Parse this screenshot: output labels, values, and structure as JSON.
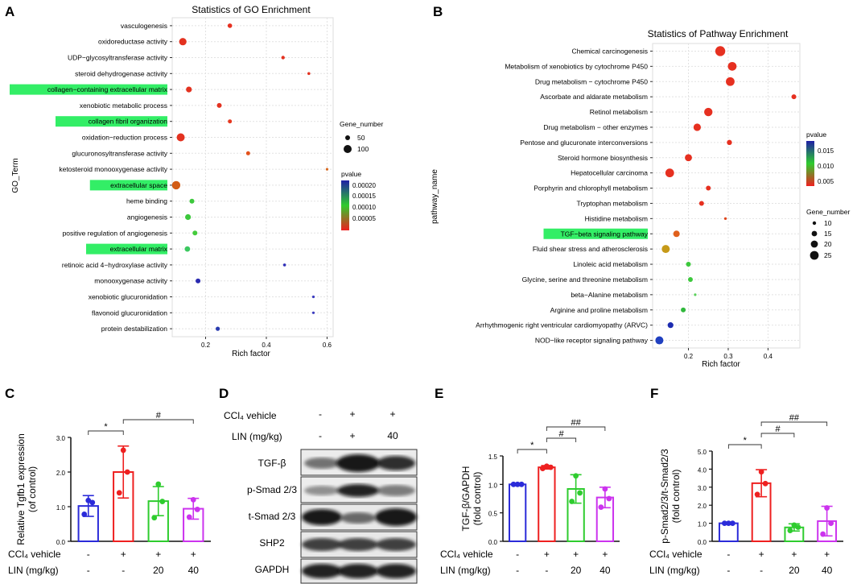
{
  "panels": {
    "A": "A",
    "B": "B",
    "C": "C",
    "D": "D",
    "E": "E",
    "F": "F"
  },
  "colors": {
    "blue": "#2b2bd9",
    "red": "#ee2020",
    "green": "#2ecc2e",
    "magenta": "#cc33ee",
    "highlight": "#33ee66"
  },
  "chart_data": [
    {
      "id": "go",
      "type": "scatter",
      "title": "Statistics of GO Enrichment",
      "xlabel": "Rich factor",
      "ylabel": "GO_Term",
      "xlim": [
        0.09,
        0.62
      ],
      "xticks": [
        {
          "v": 0.2,
          "label": "0.2"
        },
        {
          "v": 0.4,
          "label": "0.4"
        },
        {
          "v": 0.6,
          "label": "0.6"
        }
      ],
      "terms": [
        {
          "name": "vasculogenesis",
          "x": 0.28,
          "r": 2.8,
          "color": "#e63020",
          "hl": false
        },
        {
          "name": "oxidoreductase activity",
          "x": 0.125,
          "r": 4.6,
          "color": "#e33220",
          "hl": false
        },
        {
          "name": "UDP−glycosyltransferase activity",
          "x": 0.455,
          "r": 2.2,
          "color": "#e33220",
          "hl": false
        },
        {
          "name": "steroid dehydrogenase activity",
          "x": 0.54,
          "r": 1.8,
          "color": "#e33220",
          "hl": false
        },
        {
          "name": "collagen−containing extracellular matrix",
          "x": 0.145,
          "r": 3.6,
          "color": "#e33220",
          "hl": true
        },
        {
          "name": "xenobiotic metabolic process",
          "x": 0.245,
          "r": 3.0,
          "color": "#e33220",
          "hl": false
        },
        {
          "name": "collagen fibril organization",
          "x": 0.28,
          "r": 2.5,
          "color": "#e63820",
          "hl": true
        },
        {
          "name": "oxidation−reduction process",
          "x": 0.118,
          "r": 5.0,
          "color": "#e33220",
          "hl": false
        },
        {
          "name": "glucuronosyltransferase activity",
          "x": 0.34,
          "r": 2.5,
          "color": "#e3521c",
          "hl": false
        },
        {
          "name": "ketosteroid monooxygenase activity",
          "x": 0.6,
          "r": 1.6,
          "color": "#d86820",
          "hl": false
        },
        {
          "name": "extracellular space",
          "x": 0.103,
          "r": 5.2,
          "color": "#d25b14",
          "hl": true
        },
        {
          "name": "heme binding",
          "x": 0.155,
          "r": 3.0,
          "color": "#3cc83c",
          "hl": false
        },
        {
          "name": "angiogenesis",
          "x": 0.142,
          "r": 3.6,
          "color": "#3cc83c",
          "hl": false
        },
        {
          "name": "positive regulation of angiogenesis",
          "x": 0.165,
          "r": 3.0,
          "color": "#44cc3c",
          "hl": false
        },
        {
          "name": "extracellular matrix",
          "x": 0.14,
          "r": 3.4,
          "color": "#3cc860",
          "hl": true
        },
        {
          "name": "retinoic acid 4−hydroxylase activity",
          "x": 0.46,
          "r": 1.8,
          "color": "#3030b8",
          "hl": false
        },
        {
          "name": "monooxygenase activity",
          "x": 0.175,
          "r": 3.0,
          "color": "#2a2ab0",
          "hl": false
        },
        {
          "name": "xenobiotic glucuronidation",
          "x": 0.555,
          "r": 1.6,
          "color": "#3c3cc0",
          "hl": false
        },
        {
          "name": "flavonoid glucuronidation",
          "x": 0.555,
          "r": 1.6,
          "color": "#3c3cc0",
          "hl": false
        },
        {
          "name": "protein destabilization",
          "x": 0.24,
          "r": 2.6,
          "color": "#2a3cb0",
          "hl": false
        }
      ],
      "size_legend": {
        "title": "Gene_number",
        "entries": [
          {
            "label": "50",
            "r": 3
          },
          {
            "label": "100",
            "r": 5
          }
        ]
      },
      "color_legend": {
        "title": "pvalue",
        "ticks": [
          "0.00020",
          "0.00015",
          "0.00010",
          "0.00005"
        ]
      }
    },
    {
      "id": "kegg",
      "type": "scatter",
      "title": "Statistics of Pathway Enrichment",
      "xlabel": "Rich factor",
      "ylabel": "pathway_name",
      "xlim": [
        0.11,
        0.48
      ],
      "xticks": [
        {
          "v": 0.2,
          "label": "0.2"
        },
        {
          "v": 0.3,
          "label": "0.3"
        },
        {
          "v": 0.4,
          "label": "0.4"
        }
      ],
      "terms": [
        {
          "name": "Chemical carcinogenesis",
          "x": 0.28,
          "r": 6.2,
          "color": "#e63020",
          "hl": false
        },
        {
          "name": "Metabolism of xenobiotics by cytochrome P450",
          "x": 0.31,
          "r": 5.4,
          "color": "#e63020",
          "hl": false
        },
        {
          "name": "Drug metabolism − cytochrome P450",
          "x": 0.305,
          "r": 5.4,
          "color": "#e63020",
          "hl": false
        },
        {
          "name": "Ascorbate and aldarate metabolism",
          "x": 0.465,
          "r": 3.0,
          "color": "#e63020",
          "hl": false
        },
        {
          "name": "Retinol metabolism",
          "x": 0.25,
          "r": 5.2,
          "color": "#e63020",
          "hl": false
        },
        {
          "name": "Drug metabolism − other enzymes",
          "x": 0.222,
          "r": 4.6,
          "color": "#e63020",
          "hl": false
        },
        {
          "name": "Pentose and glucuronate interconversions",
          "x": 0.303,
          "r": 3.2,
          "color": "#e63020",
          "hl": false
        },
        {
          "name": "Steroid hormone biosynthesis",
          "x": 0.2,
          "r": 4.4,
          "color": "#e63020",
          "hl": false
        },
        {
          "name": "Hepatocellular carcinoma",
          "x": 0.153,
          "r": 5.4,
          "color": "#e63020",
          "hl": false
        },
        {
          "name": "Porphyrin and chlorophyll metabolism",
          "x": 0.25,
          "r": 3.0,
          "color": "#e63020",
          "hl": false
        },
        {
          "name": "Tryptophan metabolism",
          "x": 0.233,
          "r": 3.0,
          "color": "#e63020",
          "hl": false
        },
        {
          "name": "Histidine metabolism",
          "x": 0.293,
          "r": 1.6,
          "color": "#e0461c",
          "hl": false
        },
        {
          "name": "TGF−beta signaling pathway",
          "x": 0.17,
          "r": 4.0,
          "color": "#e0601c",
          "hl": true
        },
        {
          "name": "Fluid shear stress and atherosclerosis",
          "x": 0.143,
          "r": 5.0,
          "color": "#c69a18",
          "hl": false
        },
        {
          "name": "Linoleic acid metabolism",
          "x": 0.2,
          "r": 3.0,
          "color": "#3cc83c",
          "hl": false
        },
        {
          "name": "Glycine, serine and threonine metabolism",
          "x": 0.205,
          "r": 3.0,
          "color": "#3cc83c",
          "hl": false
        },
        {
          "name": "beta−Alanine metabolism",
          "x": 0.217,
          "r": 1.6,
          "color": "#5ad05a",
          "hl": false
        },
        {
          "name": "Arginine and proline metabolism",
          "x": 0.187,
          "r": 3.0,
          "color": "#30b83c",
          "hl": false
        },
        {
          "name": "Arrhythmogenic right ventricular cardiomyopathy (ARVC)",
          "x": 0.155,
          "r": 3.6,
          "color": "#1c2cb0",
          "hl": false
        },
        {
          "name": "NOD−like receptor signaling pathway",
          "x": 0.127,
          "r": 5.0,
          "color": "#2040c0",
          "hl": false
        }
      ],
      "color_legend": {
        "title": "pvalue",
        "ticks": [
          "0.015",
          "0.010",
          "0.005"
        ]
      },
      "size_legend": {
        "title": "Gene_number",
        "entries": [
          {
            "label": "10",
            "r": 2.2
          },
          {
            "label": "15",
            "r": 3.4
          },
          {
            "label": "20",
            "r": 4.4
          },
          {
            "label": "25",
            "r": 5.4
          }
        ]
      }
    },
    {
      "id": "c",
      "type": "bar",
      "ylabel": "Relative Tgfb1 expression\n(of control)",
      "ylim": [
        0,
        3.0
      ],
      "yticks": [
        "0.0",
        "1.0",
        "2.0",
        "3.0"
      ],
      "categories": [
        "CCl4 vehicle −",
        "CCl4 +",
        "CCl4 + LIN 20",
        "CCl4 + LIN 40"
      ],
      "values": [
        1.02,
        2.0,
        1.16,
        0.94
      ],
      "errors": [
        0.3,
        0.75,
        0.42,
        0.3
      ],
      "points": [
        [
          0.78,
          1.12,
          1.18
        ],
        [
          1.4,
          2.0,
          2.63
        ],
        [
          0.68,
          1.15,
          1.65
        ],
        [
          0.7,
          0.92,
          1.2
        ]
      ],
      "sig": [
        {
          "from": 0,
          "to": 1,
          "label": "*"
        },
        {
          "from": 1,
          "to": 3,
          "label": "#"
        }
      ]
    },
    {
      "id": "e",
      "type": "bar",
      "ylabel": "TGF-β/GAPDH\n(fold control)",
      "ylim": [
        0,
        1.5
      ],
      "yticks": [
        "0.0",
        "0.5",
        "1.0",
        "1.5"
      ],
      "categories": [
        "CCl4 vehicle −",
        "CCl4 +",
        "CCl4 + LIN 20",
        "CCl4 + LIN 40"
      ],
      "values": [
        1.0,
        1.3,
        0.92,
        0.77
      ],
      "errors": [
        0.01,
        0.03,
        0.25,
        0.18
      ],
      "points": [
        [
          1.0,
          1.0,
          1.0
        ],
        [
          1.28,
          1.3,
          1.32
        ],
        [
          0.7,
          0.85,
          1.15
        ],
        [
          0.6,
          0.75,
          0.92
        ]
      ],
      "sig": [
        {
          "from": 0,
          "to": 1,
          "label": "*"
        },
        {
          "from": 1,
          "to": 2,
          "label": "#"
        },
        {
          "from": 1,
          "to": 3,
          "label": "##"
        }
      ]
    },
    {
      "id": "f",
      "type": "bar",
      "ylabel": "p-Smad2/3/t-Smad2/3\n(fold control)",
      "ylim": [
        0,
        5.0
      ],
      "yticks": [
        "0.0",
        "1.0",
        "2.0",
        "3.0",
        "4.0",
        "5.0"
      ],
      "categories": [
        "CCl4 vehicle −",
        "CCl4 +",
        "CCl4 + LIN 20",
        "CCl4 + LIN 40"
      ],
      "values": [
        1.0,
        3.22,
        0.77,
        1.12
      ],
      "errors": [
        0.02,
        0.75,
        0.2,
        0.82
      ],
      "points": [
        [
          1.0,
          1.0,
          1.0
        ],
        [
          2.6,
          3.2,
          3.85
        ],
        [
          0.6,
          0.78,
          0.9
        ],
        [
          0.4,
          1.0,
          1.85
        ]
      ],
      "sig": [
        {
          "from": 0,
          "to": 1,
          "label": "*"
        },
        {
          "from": 1,
          "to": 2,
          "label": "#"
        },
        {
          "from": 1,
          "to": 3,
          "label": "##"
        }
      ]
    }
  ],
  "conditions": {
    "row1_label": "CCl₄ vehicle",
    "row2_label": "LIN (mg/kg)",
    "row1": [
      "-",
      "+",
      "+",
      "+"
    ],
    "row2": [
      "-",
      "-",
      "20",
      "40"
    ]
  },
  "blot": {
    "cond_row1_label": "CCl₄ vehicle",
    "cond_row2_label": "LIN  (mg/kg)",
    "row1": [
      "-",
      "+",
      "+"
    ],
    "row2": [
      "-",
      "+",
      "40"
    ],
    "bands": [
      "TGF-β",
      "p-Smad 2/3",
      "t-Smad 2/3",
      "SHP2",
      "GAPDH"
    ]
  }
}
